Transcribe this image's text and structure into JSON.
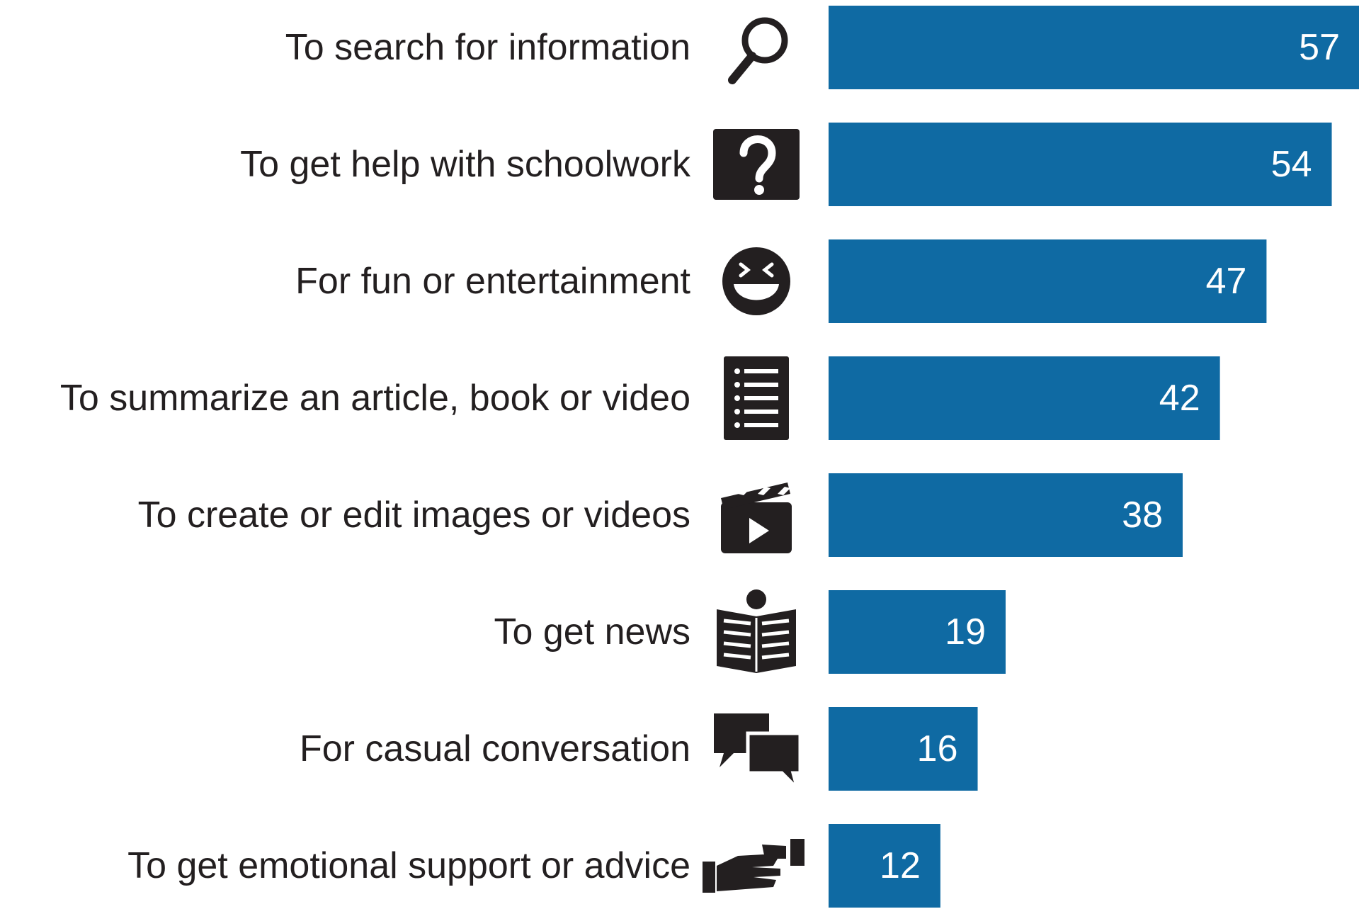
{
  "chart_data": {
    "type": "bar",
    "orientation": "horizontal",
    "categories": [
      "To search for information",
      "To get help with schoolwork",
      "For fun or entertainment",
      "To summarize an article, book or video",
      "To create or edit images or videos",
      "To get news",
      "For casual conversation",
      "To get emotional support or advice"
    ],
    "values": [
      57,
      54,
      47,
      42,
      38,
      19,
      16,
      12
    ],
    "value_labels": [
      "57",
      "54",
      "47",
      "42",
      "38",
      "19",
      "16",
      "12"
    ],
    "icons": [
      "magnifier-icon",
      "question-mark-icon",
      "laughing-face-icon",
      "list-icon",
      "clapperboard-icon",
      "newspaper-reader-icon",
      "speech-bubbles-icon",
      "helping-hand-icon"
    ],
    "title": "",
    "xlabel": "",
    "ylabel": "",
    "xlim": [
      0,
      57
    ],
    "grid": false,
    "legend": "none",
    "bar_color": "#0f6aa3",
    "icon_color": "#231f20"
  }
}
